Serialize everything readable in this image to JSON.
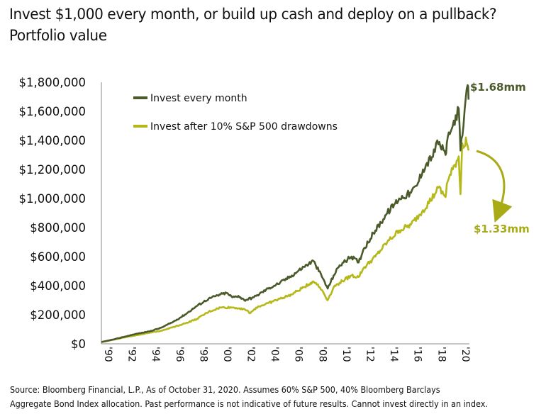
{
  "title_lines": [
    "Invest $1,000 every month, or build up cash and deploy on a pullback?",
    "Portfolio value"
  ],
  "source_lines": [
    "Source: Bloomberg Financial, L.P., As of October 31, 2020. Assumes 60% S&P 500, 40% Bloomberg Barclays",
    "Aggregate Bond Index allocation. Past performance is not indicative of future results. Cannot invest directly in an index."
  ],
  "chart_data": {
    "type": "line",
    "title": "Invest $1,000 every month, or build up cash and deploy on a pullback?",
    "subtitle": "Portfolio value",
    "xlim": [
      1990,
      2020.9
    ],
    "ylim": [
      0,
      1800000
    ],
    "y_ticks": [
      0,
      200000,
      400000,
      600000,
      800000,
      1000000,
      1200000,
      1400000,
      1600000,
      1800000
    ],
    "y_tick_labels": [
      "$0",
      "$200,000",
      "$400,000",
      "$600,000",
      "$800,000",
      "$1,000,000",
      "$1,200,000",
      "$1,400,000",
      "$1,600,000",
      "$1,800,000"
    ],
    "x_ticks": [
      1990,
      1992,
      1994,
      1996,
      1998,
      2000,
      2002,
      2004,
      2006,
      2008,
      2010,
      2012,
      2014,
      2016,
      2018,
      2020
    ],
    "x_tick_labels": [
      "'90",
      "'92",
      "'94",
      "'96",
      "'98",
      "'00",
      "'02",
      "'04",
      "'06",
      "'08",
      "'10",
      "'12",
      "'14",
      "'16",
      "'18",
      "'20"
    ],
    "grid": false,
    "legend_placement": "top-left",
    "series": [
      {
        "name": "Invest every month",
        "color": "#4a5a2a",
        "points": [
          [
            1990,
            12000
          ],
          [
            1991,
            30000
          ],
          [
            1992,
            50000
          ],
          [
            1993,
            70000
          ],
          [
            1994,
            85000
          ],
          [
            1995,
            110000
          ],
          [
            1996,
            150000
          ],
          [
            1997,
            200000
          ],
          [
            1998,
            260000
          ],
          [
            1999,
            310000
          ],
          [
            2000,
            340000
          ],
          [
            2000.5,
            350000
          ],
          [
            2001,
            320000
          ],
          [
            2001.5,
            330000
          ],
          [
            2002,
            300000
          ],
          [
            2002.8,
            320000
          ],
          [
            2003,
            330000
          ],
          [
            2004,
            380000
          ],
          [
            2005,
            420000
          ],
          [
            2006,
            470000
          ],
          [
            2007,
            530000
          ],
          [
            2007.8,
            570000
          ],
          [
            2008,
            540000
          ],
          [
            2008.6,
            450000
          ],
          [
            2009,
            380000
          ],
          [
            2009.5,
            470000
          ],
          [
            2010,
            540000
          ],
          [
            2011,
            600000
          ],
          [
            2011.6,
            560000
          ],
          [
            2012,
            650000
          ],
          [
            2013,
            780000
          ],
          [
            2014,
            900000
          ],
          [
            2015,
            1000000
          ],
          [
            2016,
            1040000
          ],
          [
            2016.5,
            1090000
          ],
          [
            2017,
            1200000
          ],
          [
            2018,
            1320000
          ],
          [
            2018.2,
            1400000
          ],
          [
            2018.9,
            1300000
          ],
          [
            2019,
            1380000
          ],
          [
            2019.5,
            1500000
          ],
          [
            2020,
            1620000
          ],
          [
            2020.15,
            1330000
          ],
          [
            2020.4,
            1500000
          ],
          [
            2020.6,
            1700000
          ],
          [
            2020.75,
            1780000
          ],
          [
            2020.83,
            1680000
          ]
        ]
      },
      {
        "name": "Invest after 10% S&P 500 drawdowns",
        "color": "#b5b81a",
        "points": [
          [
            1990,
            12000
          ],
          [
            1991,
            28000
          ],
          [
            1992,
            45000
          ],
          [
            1993,
            60000
          ],
          [
            1994,
            75000
          ],
          [
            1995,
            90000
          ],
          [
            1996,
            115000
          ],
          [
            1997,
            140000
          ],
          [
            1998,
            170000
          ],
          [
            1999,
            220000
          ],
          [
            2000,
            250000
          ],
          [
            2001,
            250000
          ],
          [
            2002,
            240000
          ],
          [
            2002.5,
            210000
          ],
          [
            2003,
            250000
          ],
          [
            2004,
            280000
          ],
          [
            2005,
            310000
          ],
          [
            2006,
            340000
          ],
          [
            2007,
            390000
          ],
          [
            2007.8,
            430000
          ],
          [
            2008,
            420000
          ],
          [
            2008.6,
            360000
          ],
          [
            2009,
            300000
          ],
          [
            2009.5,
            390000
          ],
          [
            2010,
            420000
          ],
          [
            2011,
            470000
          ],
          [
            2011.6,
            460000
          ],
          [
            2012,
            520000
          ],
          [
            2013,
            600000
          ],
          [
            2014,
            700000
          ],
          [
            2015,
            780000
          ],
          [
            2016,
            820000
          ],
          [
            2017,
            920000
          ],
          [
            2018,
            1030000
          ],
          [
            2018.2,
            1080000
          ],
          [
            2018.9,
            1010000
          ],
          [
            2019,
            1100000
          ],
          [
            2019.5,
            1200000
          ],
          [
            2020,
            1290000
          ],
          [
            2020.15,
            1030000
          ],
          [
            2020.3,
            1380000
          ],
          [
            2020.5,
            1360000
          ],
          [
            2020.6,
            1420000
          ],
          [
            2020.83,
            1330000
          ]
        ]
      }
    ],
    "annotations": [
      {
        "text": "$1.68mm",
        "color": "#4a5a2a"
      },
      {
        "text": "$1.33mm",
        "color": "#a8ab16"
      }
    ]
  }
}
